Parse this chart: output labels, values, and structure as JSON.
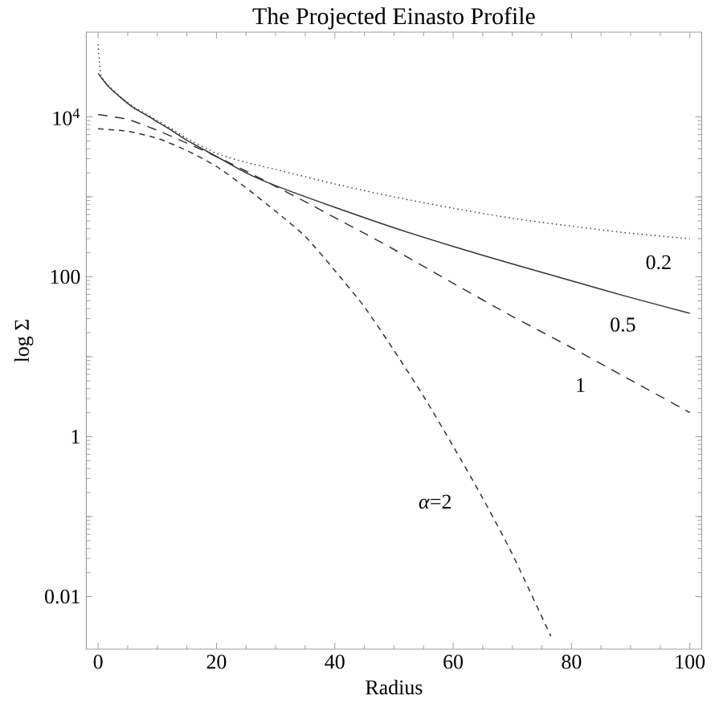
{
  "chart_data": {
    "type": "line",
    "title": "The Projected Einasto Profile",
    "xlabel": "Radius",
    "ylabel": "log Σ",
    "log": "y",
    "xlim": [
      -2,
      102
    ],
    "ylim": [
      0.0022,
      115000
    ],
    "xticks": [
      0,
      20,
      40,
      60,
      80,
      100
    ],
    "yticks": [
      0.01,
      {
        "value": 0.1,
        "label": null
      },
      1,
      {
        "value": 10,
        "label": null
      },
      100,
      {
        "value": 1000,
        "label": null
      },
      {
        "value": 10000,
        "label": "10$^{4}$"
      }
    ],
    "series": [
      {
        "name": "0.2",
        "color": "#333333",
        "line_style": "dotted",
        "x": [
          0,
          0.25,
          0.5,
          1,
          2,
          4,
          6,
          8,
          10,
          12,
          15,
          20,
          25,
          30,
          40,
          50,
          60,
          70,
          80,
          90,
          100
        ],
        "values": [
          81000,
          45000,
          33000,
          28500,
          23500,
          17300,
          13300,
          11000,
          9000,
          7400,
          5400,
          3500,
          2700,
          2200,
          1450,
          1000,
          720,
          540,
          430,
          350,
          300
        ]
      },
      {
        "name": "0.5",
        "color": "#333333",
        "line_style": "solid",
        "x": [
          0,
          1,
          2,
          4,
          6,
          8,
          10,
          12,
          15,
          20,
          25,
          30,
          40,
          50,
          60,
          70,
          80,
          90,
          100
        ],
        "values": [
          35000,
          28000,
          23000,
          17000,
          13000,
          10700,
          8700,
          7100,
          5100,
          3200,
          2000,
          1380,
          740,
          410,
          240,
          145,
          89,
          55,
          35
        ]
      },
      {
        "name": "1",
        "color": "#333333",
        "line_style": "dashed",
        "x": [
          0,
          5,
          10,
          15,
          20,
          25,
          30,
          35,
          40,
          45,
          50,
          60,
          70,
          80,
          90,
          100
        ],
        "values": [
          10700,
          9300,
          6800,
          4700,
          3200,
          2100,
          1350,
          870,
          550,
          350,
          220,
          83,
          32,
          13,
          5.1,
          2.0
        ]
      },
      {
        "name": "*α*=2",
        "color": "#333333",
        "line_style": "dashed",
        "x": [
          0,
          5,
          10,
          15,
          20,
          25,
          30,
          35,
          40,
          45,
          50,
          55,
          60,
          65,
          70,
          76.5
        ],
        "values": [
          7100,
          6600,
          5400,
          3800,
          2400,
          1300,
          660,
          320,
          120,
          42,
          12,
          3.2,
          0.76,
          0.17,
          0.034,
          0.0032
        ]
      }
    ]
  }
}
